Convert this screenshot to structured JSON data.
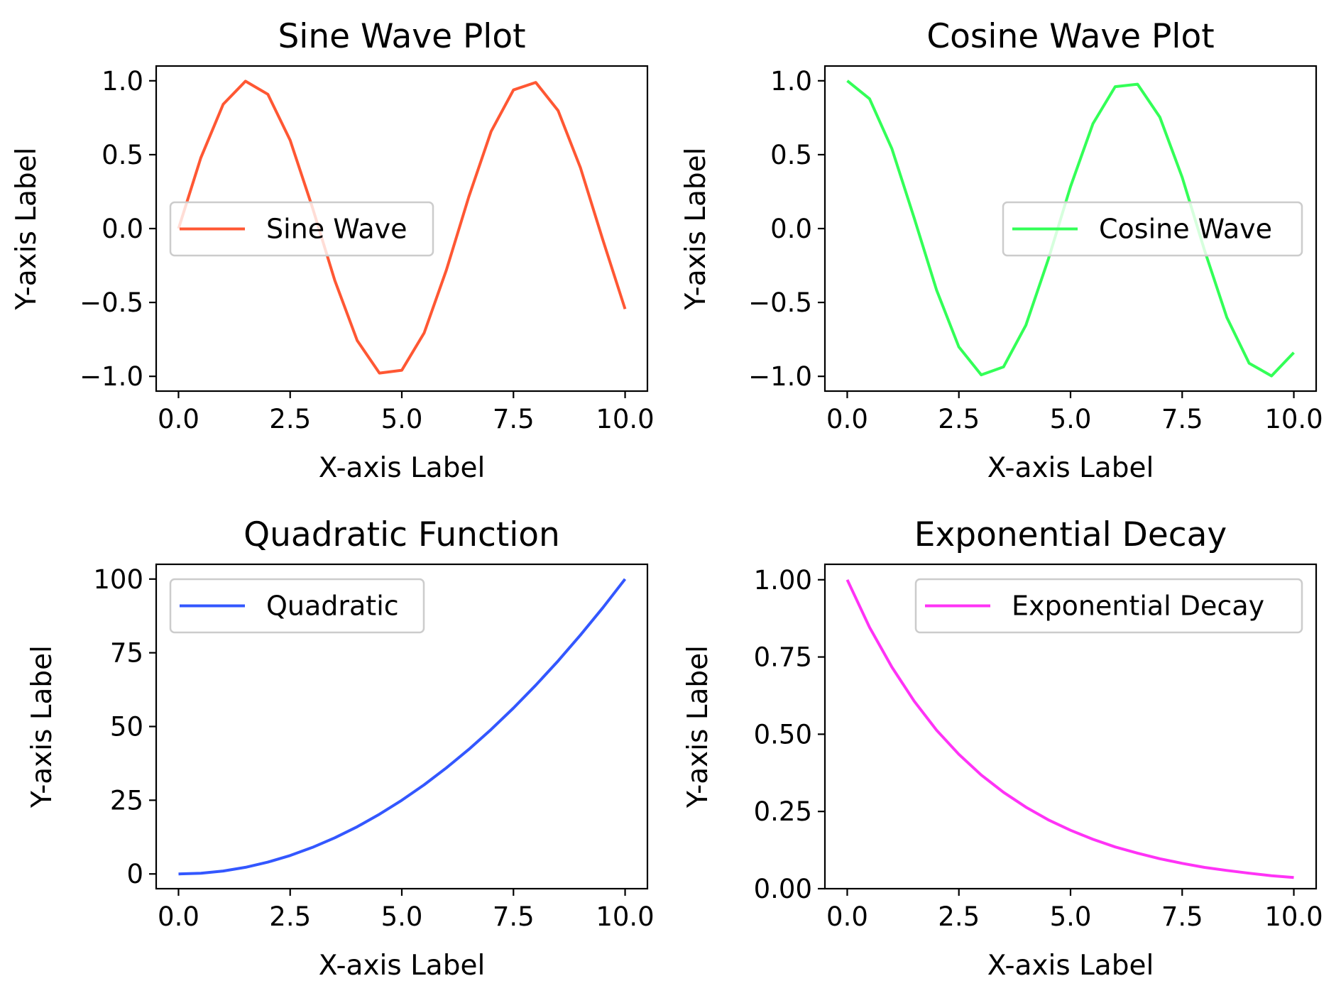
{
  "chart_data": [
    {
      "type": "line",
      "title": "Sine Wave Plot",
      "xlabel": "X-axis Label",
      "ylabel": "Y-axis Label",
      "xlim": [
        -0.5,
        10.5
      ],
      "ylim": [
        -1.1,
        1.1
      ],
      "xticks": [
        0,
        2.5,
        5,
        7.5,
        10
      ],
      "xtick_labels": [
        "0.0",
        "2.5",
        "5.0",
        "7.5",
        "10.0"
      ],
      "yticks": [
        1,
        0.5,
        0,
        -0.5,
        -1
      ],
      "ytick_labels": [
        "1.0",
        "0.5",
        "0.0",
        "−0.5",
        "−1.0"
      ],
      "legend_position": "center-left",
      "grid": false,
      "series": [
        {
          "name": "Sine Wave",
          "color": "#FF5733",
          "x": [
            0,
            0.5,
            1,
            1.5,
            2,
            2.5,
            3,
            3.5,
            4,
            4.5,
            5,
            5.5,
            6,
            6.5,
            7,
            7.5,
            8,
            8.5,
            9,
            9.5,
            10
          ],
          "y": [
            0,
            0.479,
            0.841,
            0.997,
            0.909,
            0.598,
            0.141,
            -0.351,
            -0.757,
            -0.978,
            -0.959,
            -0.706,
            -0.279,
            0.215,
            0.657,
            0.938,
            0.989,
            0.798,
            0.412,
            -0.075,
            -0.544
          ]
        }
      ]
    },
    {
      "type": "line",
      "title": "Cosine Wave Plot",
      "xlabel": "X-axis Label",
      "ylabel": "Y-axis Label",
      "xlim": [
        -0.5,
        10.5
      ],
      "ylim": [
        -1.1,
        1.1
      ],
      "xticks": [
        0,
        2.5,
        5,
        7.5,
        10
      ],
      "xtick_labels": [
        "0.0",
        "2.5",
        "5.0",
        "7.5",
        "10.0"
      ],
      "yticks": [
        1,
        0.5,
        0,
        -0.5,
        -1
      ],
      "ytick_labels": [
        "1.0",
        "0.5",
        "0.0",
        "−0.5",
        "−1.0"
      ],
      "legend_position": "center-right",
      "grid": false,
      "series": [
        {
          "name": "Cosine Wave",
          "color": "#33FF57",
          "x": [
            0,
            0.5,
            1,
            1.5,
            2,
            2.5,
            3,
            3.5,
            4,
            4.5,
            5,
            5.5,
            6,
            6.5,
            7,
            7.5,
            8,
            8.5,
            9,
            9.5,
            10
          ],
          "y": [
            1,
            0.878,
            0.54,
            0.071,
            -0.416,
            -0.801,
            -0.99,
            -0.936,
            -0.654,
            -0.211,
            0.284,
            0.709,
            0.96,
            0.977,
            0.754,
            0.347,
            -0.146,
            -0.602,
            -0.911,
            -0.997,
            -0.839
          ]
        }
      ]
    },
    {
      "type": "line",
      "title": "Quadratic Function",
      "xlabel": "X-axis Label",
      "ylabel": "Y-axis Label",
      "xlim": [
        -0.5,
        10.5
      ],
      "ylim": [
        -5,
        105
      ],
      "xticks": [
        0,
        2.5,
        5,
        7.5,
        10
      ],
      "xtick_labels": [
        "0.0",
        "2.5",
        "5.0",
        "7.5",
        "10.0"
      ],
      "yticks": [
        100,
        75,
        50,
        25,
        0
      ],
      "ytick_labels": [
        "100",
        "75",
        "50",
        "25",
        "0"
      ],
      "legend_position": "top-left",
      "grid": false,
      "series": [
        {
          "name": "Quadratic",
          "color": "#3357FF",
          "x": [
            0,
            0.5,
            1,
            1.5,
            2,
            2.5,
            3,
            3.5,
            4,
            4.5,
            5,
            5.5,
            6,
            6.5,
            7,
            7.5,
            8,
            8.5,
            9,
            9.5,
            10
          ],
          "y": [
            0,
            0.25,
            1,
            2.25,
            4,
            6.25,
            9,
            12.25,
            16,
            20.25,
            25,
            30.25,
            36,
            42.25,
            49,
            56.25,
            64,
            72.25,
            81,
            90.25,
            100
          ]
        }
      ]
    },
    {
      "type": "line",
      "title": "Exponential Decay",
      "xlabel": "X-axis Label",
      "ylabel": "Y-axis Label",
      "xlim": [
        -0.5,
        10.5
      ],
      "ylim": [
        -0.0,
        1.05
      ],
      "xticks": [
        0,
        2.5,
        5,
        7.5,
        10
      ],
      "xtick_labels": [
        "0.0",
        "2.5",
        "5.0",
        "7.5",
        "10.0"
      ],
      "yticks": [
        1,
        0.75,
        0.5,
        0.25,
        0
      ],
      "ytick_labels": [
        "1.00",
        "0.75",
        "0.50",
        "0.25",
        "0.00"
      ],
      "legend_position": "top-right",
      "grid": false,
      "series": [
        {
          "name": "Exponential Decay",
          "color": "#FF33F6",
          "x": [
            0,
            0.5,
            1,
            1.5,
            2,
            2.5,
            3,
            3.5,
            4,
            4.5,
            5,
            5.5,
            6,
            6.5,
            7,
            7.5,
            8,
            8.5,
            9,
            9.5,
            10
          ],
          "y": [
            1,
            0.846,
            0.717,
            0.607,
            0.513,
            0.435,
            0.368,
            0.312,
            0.264,
            0.223,
            0.189,
            0.16,
            0.135,
            0.115,
            0.097,
            0.082,
            0.069,
            0.059,
            0.05,
            0.042,
            0.036
          ]
        }
      ]
    }
  ]
}
